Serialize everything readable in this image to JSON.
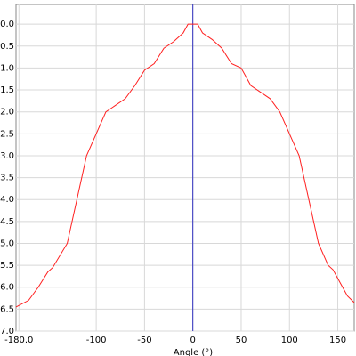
{
  "chart_data": {
    "type": "line",
    "x_label": "Angle (°)",
    "x": [
      -183,
      -170,
      -160,
      -150,
      -145,
      -130,
      -120,
      -110,
      -100,
      -90,
      -70,
      -60,
      -50,
      -40,
      -30,
      -20,
      -10,
      -5,
      0,
      5,
      10,
      20,
      30,
      40,
      50,
      60,
      80,
      90,
      100,
      110,
      120,
      130,
      140,
      145,
      160,
      167
    ],
    "series": [
      {
        "color": "#ff2020",
        "values": [
          6.45,
          6.3,
          6.0,
          5.65,
          5.55,
          5.0,
          4.0,
          3.0,
          2.5,
          2.0,
          1.7,
          1.4,
          1.05,
          0.9,
          0.55,
          0.4,
          0.2,
          0.0,
          0.0,
          0.0,
          0.2,
          0.35,
          0.55,
          0.9,
          1.0,
          1.4,
          1.7,
          2.0,
          2.5,
          3.0,
          4.0,
          5.0,
          5.5,
          5.6,
          6.2,
          6.35
        ]
      }
    ],
    "xlim": [
      -183,
      167
    ],
    "ylim": [
      -0.45,
      7.0
    ],
    "y_inverted": true,
    "xticks": [
      {
        "value": -180,
        "label": "-180.0"
      },
      -100,
      -50,
      0,
      50,
      100,
      150
    ],
    "yticks": [
      {
        "value": 0,
        "label": "0.0"
      },
      0.5,
      {
        "value": 1,
        "label": "1.0"
      },
      1.5,
      {
        "value": 2,
        "label": "2.0"
      },
      2.5,
      {
        "value": 3,
        "label": "3.0"
      },
      3.5,
      {
        "value": 4,
        "label": "4.0"
      },
      4.5,
      {
        "value": 5,
        "label": "5.0"
      },
      5.5,
      {
        "value": 6,
        "label": "6.0"
      },
      6.5,
      {
        "value": 7,
        "label": "7.0"
      }
    ],
    "grid": true,
    "cursor_x": 0,
    "cursor_color": "#3030c0"
  }
}
